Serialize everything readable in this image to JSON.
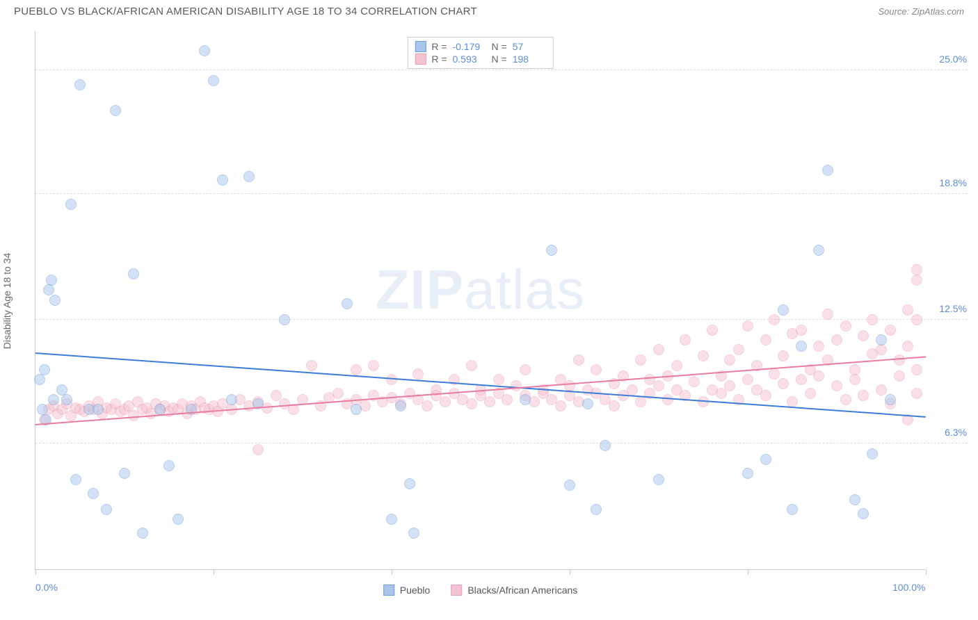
{
  "title": "PUEBLO VS BLACK/AFRICAN AMERICAN DISABILITY AGE 18 TO 34 CORRELATION CHART",
  "source": "Source: ZipAtlas.com",
  "ylabel": "Disability Age 18 to 34",
  "watermark_bold": "ZIP",
  "watermark_light": "atlas",
  "chart": {
    "type": "scatter",
    "background_color": "#ffffff",
    "grid_color": "#dddddd",
    "axis_color": "#cccccc",
    "xlim": [
      0,
      100
    ],
    "ylim": [
      0,
      27
    ],
    "xtick_positions": [
      0,
      20,
      40,
      60,
      80,
      100
    ],
    "xtick_labels": {
      "0": "0.0%",
      "100": "100.0%"
    },
    "ytick_positions": [
      6.3,
      12.5,
      18.8,
      25.0
    ],
    "ytick_labels": [
      "6.3%",
      "12.5%",
      "18.8%",
      "25.0%"
    ],
    "marker_radius": 8,
    "marker_opacity": 0.5,
    "marker_stroke_width": 1.2,
    "series": [
      {
        "name": "Pueblo",
        "fill_color": "#a9c5eb",
        "stroke_color": "#6d9de0",
        "line_color": "#3b7dd8",
        "R": "-0.179",
        "N": "57",
        "trend": {
          "y_at_x0": 10.8,
          "y_at_x100": 7.6
        },
        "points": [
          [
            0.5,
            9.5
          ],
          [
            0.8,
            8.0
          ],
          [
            1.0,
            10.0
          ],
          [
            1.2,
            7.5
          ],
          [
            1.5,
            14.0
          ],
          [
            1.8,
            14.5
          ],
          [
            2.0,
            8.5
          ],
          [
            2.2,
            13.5
          ],
          [
            3.0,
            9.0
          ],
          [
            3.5,
            8.5
          ],
          [
            4.0,
            18.3
          ],
          [
            4.5,
            4.5
          ],
          [
            5.0,
            24.3
          ],
          [
            6.0,
            8.0
          ],
          [
            6.5,
            3.8
          ],
          [
            7.0,
            8.0
          ],
          [
            8.0,
            3.0
          ],
          [
            9.0,
            23.0
          ],
          [
            10.0,
            4.8
          ],
          [
            11.0,
            14.8
          ],
          [
            12.0,
            1.8
          ],
          [
            14.0,
            8.0
          ],
          [
            15.0,
            5.2
          ],
          [
            16.0,
            2.5
          ],
          [
            17.5,
            8.0
          ],
          [
            19.0,
            26.0
          ],
          [
            20.0,
            24.5
          ],
          [
            21.0,
            19.5
          ],
          [
            22.0,
            8.5
          ],
          [
            24.0,
            19.7
          ],
          [
            25.0,
            8.3
          ],
          [
            28.0,
            12.5
          ],
          [
            35.0,
            13.3
          ],
          [
            36.0,
            8.0
          ],
          [
            40.0,
            2.5
          ],
          [
            41.0,
            8.2
          ],
          [
            42.0,
            4.3
          ],
          [
            42.5,
            1.8
          ],
          [
            55.0,
            8.5
          ],
          [
            58.0,
            16.0
          ],
          [
            60.0,
            4.2
          ],
          [
            62.0,
            8.3
          ],
          [
            63.0,
            3.0
          ],
          [
            64.0,
            6.2
          ],
          [
            70.0,
            4.5
          ],
          [
            80.0,
            4.8
          ],
          [
            82.0,
            5.5
          ],
          [
            84.0,
            13.0
          ],
          [
            85.0,
            3.0
          ],
          [
            86.0,
            11.2
          ],
          [
            88.0,
            16.0
          ],
          [
            89.0,
            20.0
          ],
          [
            92.0,
            3.5
          ],
          [
            93.0,
            2.8
          ],
          [
            94.0,
            5.8
          ],
          [
            95.0,
            11.5
          ],
          [
            96.0,
            8.5
          ]
        ]
      },
      {
        "name": "Blacks/African Americans",
        "fill_color": "#f5c2cf",
        "stroke_color": "#ed9fb3",
        "line_color": "#e97ba0",
        "R": "0.593",
        "N": "198",
        "trend": {
          "y_at_x0": 7.2,
          "y_at_x100": 10.6
        },
        "points": [
          [
            1,
            7.5
          ],
          [
            1.5,
            8.0
          ],
          [
            2,
            8.2
          ],
          [
            2.5,
            7.8
          ],
          [
            3,
            8.0
          ],
          [
            3.5,
            8.3
          ],
          [
            4,
            7.7
          ],
          [
            4.5,
            8.1
          ],
          [
            5,
            8.0
          ],
          [
            5.5,
            7.9
          ],
          [
            6,
            8.2
          ],
          [
            6.5,
            8.0
          ],
          [
            7,
            8.4
          ],
          [
            7.5,
            7.8
          ],
          [
            8,
            8.1
          ],
          [
            8.5,
            8.0
          ],
          [
            9,
            8.3
          ],
          [
            9.5,
            7.9
          ],
          [
            10,
            8.0
          ],
          [
            10.5,
            8.2
          ],
          [
            11,
            7.7
          ],
          [
            11.5,
            8.4
          ],
          [
            12,
            8.0
          ],
          [
            12.5,
            8.1
          ],
          [
            13,
            7.8
          ],
          [
            13.5,
            8.3
          ],
          [
            14,
            8.0
          ],
          [
            14.5,
            8.2
          ],
          [
            15,
            7.9
          ],
          [
            15.5,
            8.1
          ],
          [
            16,
            8.0
          ],
          [
            16.5,
            8.3
          ],
          [
            17,
            7.8
          ],
          [
            17.5,
            8.2
          ],
          [
            18,
            8.0
          ],
          [
            18.5,
            8.4
          ],
          [
            19,
            8.1
          ],
          [
            19.5,
            8.0
          ],
          [
            20,
            8.2
          ],
          [
            20.5,
            7.9
          ],
          [
            21,
            8.3
          ],
          [
            22,
            8.0
          ],
          [
            23,
            8.5
          ],
          [
            24,
            8.2
          ],
          [
            25,
            6.0
          ],
          [
            25,
            8.4
          ],
          [
            26,
            8.1
          ],
          [
            27,
            8.7
          ],
          [
            28,
            8.3
          ],
          [
            29,
            8.0
          ],
          [
            30,
            8.5
          ],
          [
            31,
            10.2
          ],
          [
            32,
            8.2
          ],
          [
            33,
            8.6
          ],
          [
            34,
            8.8
          ],
          [
            35,
            8.3
          ],
          [
            36,
            10.0
          ],
          [
            36,
            8.5
          ],
          [
            37,
            8.2
          ],
          [
            38,
            10.2
          ],
          [
            38,
            8.7
          ],
          [
            39,
            8.4
          ],
          [
            40,
            9.5
          ],
          [
            40,
            8.6
          ],
          [
            41,
            8.3
          ],
          [
            42,
            8.8
          ],
          [
            43,
            9.8
          ],
          [
            43,
            8.5
          ],
          [
            44,
            8.2
          ],
          [
            45,
            9.0
          ],
          [
            45,
            8.7
          ],
          [
            46,
            8.4
          ],
          [
            47,
            9.5
          ],
          [
            47,
            8.8
          ],
          [
            48,
            8.5
          ],
          [
            49,
            10.2
          ],
          [
            49,
            8.3
          ],
          [
            50,
            9.0
          ],
          [
            50,
            8.7
          ],
          [
            51,
            8.4
          ],
          [
            52,
            9.5
          ],
          [
            52,
            8.8
          ],
          [
            53,
            8.5
          ],
          [
            54,
            9.2
          ],
          [
            55,
            8.7
          ],
          [
            55,
            10.0
          ],
          [
            56,
            8.4
          ],
          [
            57,
            9.0
          ],
          [
            57,
            8.8
          ],
          [
            58,
            8.5
          ],
          [
            59,
            9.5
          ],
          [
            59,
            8.2
          ],
          [
            60,
            9.2
          ],
          [
            60,
            8.7
          ],
          [
            61,
            10.5
          ],
          [
            61,
            8.4
          ],
          [
            62,
            9.0
          ],
          [
            63,
            8.8
          ],
          [
            63,
            10.0
          ],
          [
            64,
            8.5
          ],
          [
            65,
            9.3
          ],
          [
            65,
            8.2
          ],
          [
            66,
            9.7
          ],
          [
            66,
            8.7
          ],
          [
            67,
            9.0
          ],
          [
            68,
            8.4
          ],
          [
            68,
            10.5
          ],
          [
            69,
            9.5
          ],
          [
            69,
            8.8
          ],
          [
            70,
            9.2
          ],
          [
            70,
            11.0
          ],
          [
            71,
            8.5
          ],
          [
            71,
            9.7
          ],
          [
            72,
            9.0
          ],
          [
            72,
            10.2
          ],
          [
            73,
            8.7
          ],
          [
            73,
            11.5
          ],
          [
            74,
            9.4
          ],
          [
            75,
            8.4
          ],
          [
            75,
            10.7
          ],
          [
            76,
            9.0
          ],
          [
            76,
            12.0
          ],
          [
            77,
            9.7
          ],
          [
            77,
            8.8
          ],
          [
            78,
            10.5
          ],
          [
            78,
            9.2
          ],
          [
            79,
            8.5
          ],
          [
            79,
            11.0
          ],
          [
            80,
            9.5
          ],
          [
            80,
            12.2
          ],
          [
            81,
            9.0
          ],
          [
            81,
            10.2
          ],
          [
            82,
            8.7
          ],
          [
            82,
            11.5
          ],
          [
            83,
            9.8
          ],
          [
            83,
            12.5
          ],
          [
            84,
            9.3
          ],
          [
            84,
            10.7
          ],
          [
            85,
            8.4
          ],
          [
            85,
            11.8
          ],
          [
            86,
            9.5
          ],
          [
            86,
            12.0
          ],
          [
            87,
            10.0
          ],
          [
            87,
            8.8
          ],
          [
            88,
            11.2
          ],
          [
            88,
            9.7
          ],
          [
            89,
            12.8
          ],
          [
            89,
            10.5
          ],
          [
            90,
            9.2
          ],
          [
            90,
            11.5
          ],
          [
            91,
            8.5
          ],
          [
            91,
            12.2
          ],
          [
            92,
            10.0
          ],
          [
            92,
            9.5
          ],
          [
            93,
            11.7
          ],
          [
            93,
            8.7
          ],
          [
            94,
            10.8
          ],
          [
            94,
            12.5
          ],
          [
            95,
            9.0
          ],
          [
            95,
            11.0
          ],
          [
            96,
            8.3
          ],
          [
            96,
            12.0
          ],
          [
            97,
            10.5
          ],
          [
            97,
            9.7
          ],
          [
            98,
            13.0
          ],
          [
            98,
            11.2
          ],
          [
            98,
            7.5
          ],
          [
            99,
            15.0
          ],
          [
            99,
            10.0
          ],
          [
            99,
            14.5
          ],
          [
            99,
            8.8
          ],
          [
            99,
            12.5
          ]
        ]
      }
    ]
  },
  "legend_bottom": [
    {
      "label": "Pueblo",
      "fill": "#a9c5eb",
      "stroke": "#6d9de0"
    },
    {
      "label": "Blacks/African Americans",
      "fill": "#f5c2cf",
      "stroke": "#ed9fb3"
    }
  ]
}
